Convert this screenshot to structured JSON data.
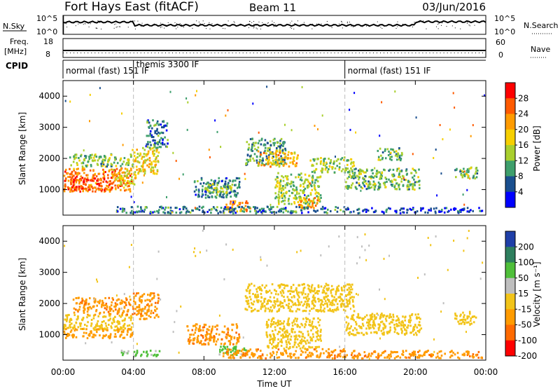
{
  "header": {
    "title": "Fort Hays East (fitACF)",
    "beam": "Beam 11",
    "date": "03/Jun/2016"
  },
  "top_panels": {
    "nsky_label": "N.Sky",
    "nsky_hi": "10^5",
    "nsky_lo": "10^0",
    "nsearch_hi": "10^5",
    "nsearch_lo": "10^0",
    "nsearch_label": "N.Search",
    "freq_label": "Freq.",
    "freq_unit": "[MHz]",
    "freq_hi": "18",
    "freq_lo": "8",
    "nave_hi": "60",
    "nave_lo": "0",
    "nave_label": "Nave",
    "cpid_label": "CPID",
    "cpid_segments": [
      {
        "start": 0,
        "end": 4,
        "text": "normal (fast) 151 IF"
      },
      {
        "start": 4,
        "end": 16,
        "text": "themis 3300 IF"
      },
      {
        "start": 16,
        "end": 24,
        "text": "normal (fast) 151 IF"
      }
    ]
  },
  "axes": {
    "xlabel": "Time UT",
    "xticks": [
      "00:00",
      "04:00",
      "08:00",
      "12:00",
      "16:00",
      "20:00",
      "00:00"
    ],
    "ylabel": "Slant Range [km]",
    "yticks": [
      "1000",
      "2000",
      "3000",
      "4000"
    ]
  },
  "colorbars": {
    "power_label": "Power [dB]",
    "power_ticks": [
      "28",
      "24",
      "20",
      "16",
      "12",
      "8",
      "4"
    ],
    "power_colors": [
      "#ff0000",
      "#ff5a00",
      "#ff9b00",
      "#f6cf00",
      "#a9cf2e",
      "#3e9f6c",
      "#1a4f8f",
      "#0000ff"
    ],
    "velocity_label": "Velocity [m s⁻¹]",
    "velocity_ticks": [
      "200",
      "100",
      "50",
      "15",
      "-15",
      "-50",
      "-100",
      "-200"
    ],
    "velocity_colors": [
      "#1f3fa8",
      "#2e7f5e",
      "#4fbf3a",
      "#bebebe",
      "#f2c419",
      "#ff9b00",
      "#ff6a00",
      "#ff0000"
    ]
  },
  "chart_data": [
    {
      "type": "heatmap",
      "name_hint": "power",
      "x_unit": "hours UT",
      "y_unit": "km",
      "xlim": [
        0,
        24
      ],
      "ylim": [
        180,
        4500
      ],
      "clim": [
        0,
        30
      ],
      "regions": [
        {
          "t0": 0.0,
          "t1": 3.9,
          "r0": 900,
          "r1": 1650,
          "val": 24
        },
        {
          "t0": 0.4,
          "t1": 2.8,
          "r0": 950,
          "r1": 1350,
          "val": 28
        },
        {
          "t0": 2.8,
          "t1": 4.1,
          "r0": 1100,
          "r1": 1600,
          "val": 18
        },
        {
          "t0": 3.9,
          "t1": 5.4,
          "r0": 1450,
          "r1": 2300,
          "val": 18
        },
        {
          "t0": 4.7,
          "t1": 5.9,
          "r0": 2300,
          "r1": 3200,
          "val": 8
        },
        {
          "t0": 0.3,
          "t1": 4.0,
          "r0": 1700,
          "r1": 2100,
          "val": 12
        },
        {
          "t0": 7.4,
          "t1": 10.0,
          "r0": 700,
          "r1": 1350,
          "val": 8
        },
        {
          "t0": 8.0,
          "t1": 9.6,
          "r0": 850,
          "r1": 1150,
          "val": 14
        },
        {
          "t0": 9.2,
          "t1": 10.6,
          "r0": 250,
          "r1": 600,
          "val": 22
        },
        {
          "t0": 10.3,
          "t1": 12.6,
          "r0": 1750,
          "r1": 2600,
          "val": 10
        },
        {
          "t0": 11.0,
          "t1": 13.3,
          "r0": 1700,
          "r1": 2200,
          "val": 20
        },
        {
          "t0": 12.0,
          "t1": 14.6,
          "r0": 500,
          "r1": 1500,
          "val": 14
        },
        {
          "t0": 13.3,
          "t1": 14.4,
          "r0": 350,
          "r1": 700,
          "val": 22
        },
        {
          "t0": 14.0,
          "t1": 16.5,
          "r0": 1500,
          "r1": 2000,
          "val": 14
        },
        {
          "t0": 16.0,
          "t1": 20.2,
          "r0": 950,
          "r1": 1650,
          "val": 12
        },
        {
          "t0": 17.8,
          "t1": 19.2,
          "r0": 1900,
          "r1": 2300,
          "val": 12
        },
        {
          "t0": 22.2,
          "t1": 23.5,
          "r0": 1300,
          "r1": 1700,
          "val": 12
        },
        {
          "t0": 3.0,
          "t1": 16.0,
          "r0": 200,
          "r1": 420,
          "val": 8
        },
        {
          "t0": 16.0,
          "t1": 23.8,
          "r0": 200,
          "r1": 380,
          "val": 4
        }
      ]
    },
    {
      "type": "heatmap",
      "name_hint": "velocity",
      "x_unit": "hours UT",
      "y_unit": "km",
      "xlim": [
        0,
        24
      ],
      "ylim": [
        180,
        4500
      ],
      "clim": [
        -200,
        200
      ],
      "regions": [
        {
          "t0": 0.0,
          "t1": 3.9,
          "r0": 1100,
          "r1": 1600,
          "val": 0
        },
        {
          "t0": 0.0,
          "t1": 3.9,
          "r0": 850,
          "r1": 1150,
          "val": -30
        },
        {
          "t0": 0.5,
          "t1": 3.8,
          "r0": 1600,
          "r1": 2150,
          "val": -40
        },
        {
          "t0": 3.9,
          "t1": 5.4,
          "r0": 1450,
          "r1": 2300,
          "val": -40
        },
        {
          "t0": 3.2,
          "t1": 5.5,
          "r0": 250,
          "r1": 450,
          "val": 60
        },
        {
          "t0": 7.0,
          "t1": 10.0,
          "r0": 650,
          "r1": 1300,
          "val": -40
        },
        {
          "t0": 8.8,
          "t1": 10.4,
          "r0": 300,
          "r1": 600,
          "val": 60
        },
        {
          "t0": 10.3,
          "t1": 16.5,
          "r0": 1700,
          "r1": 2600,
          "val": 0
        },
        {
          "t0": 11.5,
          "t1": 14.6,
          "r0": 500,
          "r1": 1500,
          "val": 0
        },
        {
          "t0": 9.0,
          "t1": 16.0,
          "r0": 200,
          "r1": 500,
          "val": -40
        },
        {
          "t0": 16.0,
          "t1": 20.3,
          "r0": 950,
          "r1": 1650,
          "val": 0
        },
        {
          "t0": 16.0,
          "t1": 23.8,
          "r0": 200,
          "r1": 450,
          "val": -40
        },
        {
          "t0": 22.2,
          "t1": 23.5,
          "r0": 1300,
          "r1": 1700,
          "val": 0
        }
      ]
    }
  ]
}
